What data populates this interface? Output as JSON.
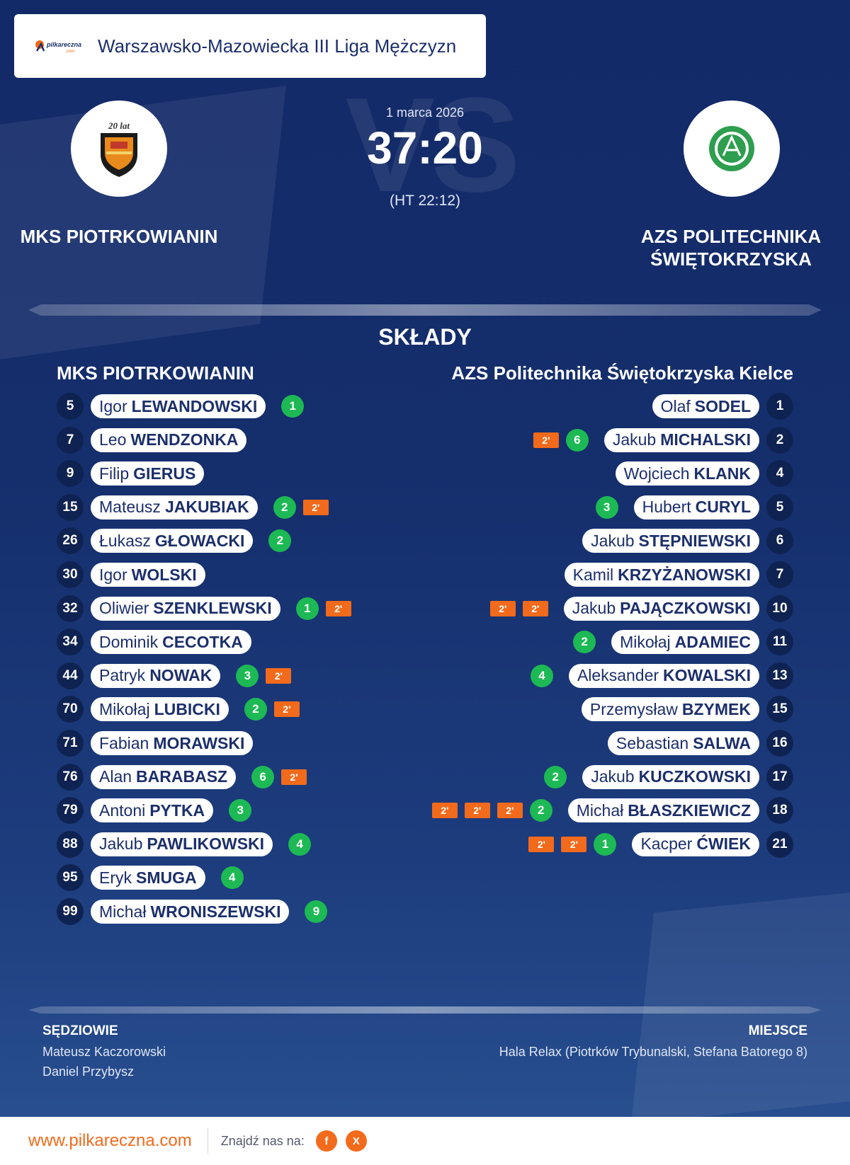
{
  "header": {
    "league": "Warszawsko-Mazowiecka III Liga Mężczyzn",
    "logo_text": "pilkareczna"
  },
  "match": {
    "date": "1 marca 2026",
    "score": "37:20",
    "halftime": "(HT 22:12)",
    "vs_watermark": "VS",
    "home_team": "MKS PIOTRKOWIANIN",
    "away_team_line1": "AZS POLITECHNIKA",
    "away_team_line2": "ŚWIĘTOKRZYSKA",
    "home_crest_text": "20 lat"
  },
  "lineups": {
    "title": "SKŁADY",
    "home_title": "MKS PIOTRKOWIANIN",
    "away_title": "AZS Politechnika Świętokrzyska Kielce",
    "home": [
      {
        "number": "5",
        "first": "Igor",
        "last": "LEWANDOWSKI",
        "goals": "1",
        "suspensions": []
      },
      {
        "number": "7",
        "first": "Leo",
        "last": "WENDZONKA",
        "goals": "",
        "suspensions": []
      },
      {
        "number": "9",
        "first": "Filip",
        "last": "GIERUS",
        "goals": "",
        "suspensions": []
      },
      {
        "number": "15",
        "first": "Mateusz",
        "last": "JAKUBIAK",
        "goals": "2",
        "suspensions": [
          "2'"
        ]
      },
      {
        "number": "26",
        "first": "Łukasz",
        "last": "GŁOWACKI",
        "goals": "2",
        "suspensions": []
      },
      {
        "number": "30",
        "first": "Igor",
        "last": "WOLSKI",
        "goals": "",
        "suspensions": []
      },
      {
        "number": "32",
        "first": "Oliwier",
        "last": "SZENKLEWSKI",
        "goals": "1",
        "suspensions": [
          "2'"
        ]
      },
      {
        "number": "34",
        "first": "Dominik",
        "last": "CECOTKA",
        "goals": "",
        "suspensions": []
      },
      {
        "number": "44",
        "first": "Patryk",
        "last": "NOWAK",
        "goals": "3",
        "suspensions": [
          "2'"
        ]
      },
      {
        "number": "70",
        "first": "Mikołaj",
        "last": "LUBICKI",
        "goals": "2",
        "suspensions": [
          "2'"
        ]
      },
      {
        "number": "71",
        "first": "Fabian",
        "last": "MORAWSKI",
        "goals": "",
        "suspensions": []
      },
      {
        "number": "76",
        "first": "Alan",
        "last": "BARABASZ",
        "goals": "6",
        "suspensions": [
          "2'"
        ]
      },
      {
        "number": "79",
        "first": "Antoni",
        "last": "PYTKA",
        "goals": "3",
        "suspensions": []
      },
      {
        "number": "88",
        "first": "Jakub",
        "last": "PAWLIKOWSKI",
        "goals": "4",
        "suspensions": []
      },
      {
        "number": "95",
        "first": "Eryk",
        "last": "SMUGA",
        "goals": "4",
        "suspensions": []
      },
      {
        "number": "99",
        "first": "Michał",
        "last": "WRONISZEWSKI",
        "goals": "9",
        "suspensions": []
      }
    ],
    "away": [
      {
        "number": "1",
        "first": "Olaf",
        "last": "SODEL",
        "goals": "",
        "suspensions": []
      },
      {
        "number": "2",
        "first": "Jakub",
        "last": "MICHALSKI",
        "goals": "6",
        "suspensions": [
          "2'"
        ]
      },
      {
        "number": "4",
        "first": "Wojciech",
        "last": "KLANK",
        "goals": "",
        "suspensions": []
      },
      {
        "number": "5",
        "first": "Hubert",
        "last": "CURYL",
        "goals": "3",
        "suspensions": []
      },
      {
        "number": "6",
        "first": "Jakub",
        "last": "STĘPNIEWSKI",
        "goals": "",
        "suspensions": []
      },
      {
        "number": "7",
        "first": "Kamil",
        "last": "KRZYŻANOWSKI",
        "goals": "",
        "suspensions": []
      },
      {
        "number": "10",
        "first": "Jakub",
        "last": "PAJĄCZKOWSKI",
        "goals": "",
        "suspensions": [
          "2'",
          "2'"
        ]
      },
      {
        "number": "11",
        "first": "Mikołaj",
        "last": "ADAMIEC",
        "goals": "2",
        "suspensions": []
      },
      {
        "number": "13",
        "first": "Aleksander",
        "last": "KOWALSKI",
        "goals": "4",
        "suspensions": []
      },
      {
        "number": "15",
        "first": "Przemysław",
        "last": "BZYMEK",
        "goals": "",
        "suspensions": []
      },
      {
        "number": "16",
        "first": "Sebastian",
        "last": "SALWA",
        "goals": "",
        "suspensions": []
      },
      {
        "number": "17",
        "first": "Jakub",
        "last": "KUCZKOWSKI",
        "goals": "2",
        "suspensions": []
      },
      {
        "number": "18",
        "first": "Michał",
        "last": "BŁASZKIEWICZ",
        "goals": "2",
        "suspensions": [
          "2'",
          "2'",
          "2'"
        ]
      },
      {
        "number": "21",
        "first": "Kacper",
        "last": "ĆWIEK",
        "goals": "1",
        "suspensions": [
          "2'",
          "2'"
        ]
      }
    ]
  },
  "officials": {
    "referees_label": "SĘDZIOWIE",
    "referees": [
      "Mateusz Kaczorowski",
      "Daniel Przybysz"
    ],
    "venue_label": "MIEJSCE",
    "venue": "Hala Relax (Piotrków Trybunalski, Stefana Batorego 8)"
  },
  "footer": {
    "site": "www.pilkareczna.com",
    "find_us": "Znajdź nas na:",
    "social": [
      {
        "icon": "facebook-icon",
        "glyph": "f"
      },
      {
        "icon": "x-icon",
        "glyph": "X"
      }
    ]
  },
  "colors": {
    "background": "#152e6c",
    "goal_badge": "#1db954",
    "suspension_badge": "#f26a1b",
    "accent": "#f26a1b",
    "pill_text": "#1c2f6b"
  }
}
